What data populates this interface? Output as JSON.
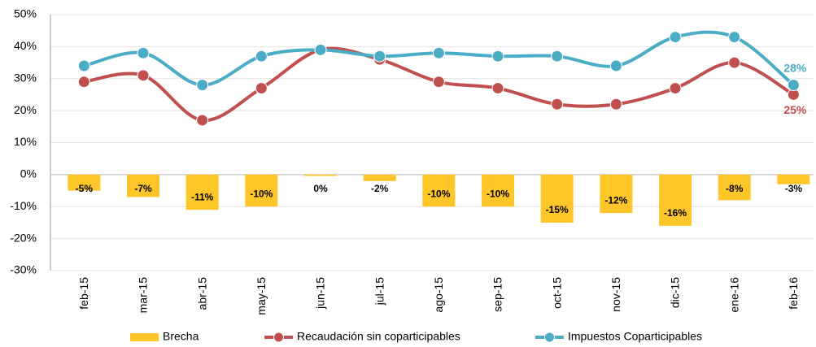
{
  "chart_data": {
    "type": "bar-line",
    "categories": [
      "feb-15",
      "mar-15",
      "abr-15",
      "may-15",
      "jun-15",
      "jul-15",
      "ago-15",
      "sep-15",
      "oct-15",
      "nov-15",
      "dic-15",
      "ene-16",
      "feb-16"
    ],
    "series": [
      {
        "name": "Brecha",
        "color": "#ffc629",
        "kind": "bar",
        "values": [
          -5,
          -7,
          -11,
          -10,
          -0.4,
          -2,
          -10,
          -10,
          -15,
          -12,
          -16,
          -8,
          -3
        ],
        "value_labels": [
          "-5%",
          "-7%",
          "-11%",
          "-10%",
          "0%",
          "-2%",
          "-10%",
          "-10%",
          "-15%",
          "-12%",
          "-16%",
          "-8%",
          "-3%"
        ]
      },
      {
        "name": "Recaudación sin coparticipables",
        "color": "#c0504d",
        "kind": "line",
        "values": [
          29,
          31,
          17,
          27,
          39,
          36,
          29,
          27,
          22,
          22,
          27,
          35,
          25
        ],
        "end_label": "25%"
      },
      {
        "name": "Impuestos Coparticipables",
        "color": "#4bacc6",
        "kind": "line",
        "values": [
          34,
          38,
          28,
          37,
          39,
          37,
          38,
          37,
          37,
          34,
          43,
          43,
          28
        ],
        "end_label": "28%"
      }
    ],
    "ylim": [
      -30,
      50
    ],
    "yticks": [
      {
        "value": -30,
        "label": "-30%"
      },
      {
        "value": -20,
        "label": "-20%"
      },
      {
        "value": -10,
        "label": "-10%"
      },
      {
        "value": 0,
        "label": "0%"
      },
      {
        "value": 10,
        "label": "10%"
      },
      {
        "value": 20,
        "label": "20%"
      },
      {
        "value": 30,
        "label": "30%"
      },
      {
        "value": 40,
        "label": "40%"
      },
      {
        "value": 50,
        "label": "50%"
      }
    ],
    "grid": true,
    "legend": "bottom"
  }
}
